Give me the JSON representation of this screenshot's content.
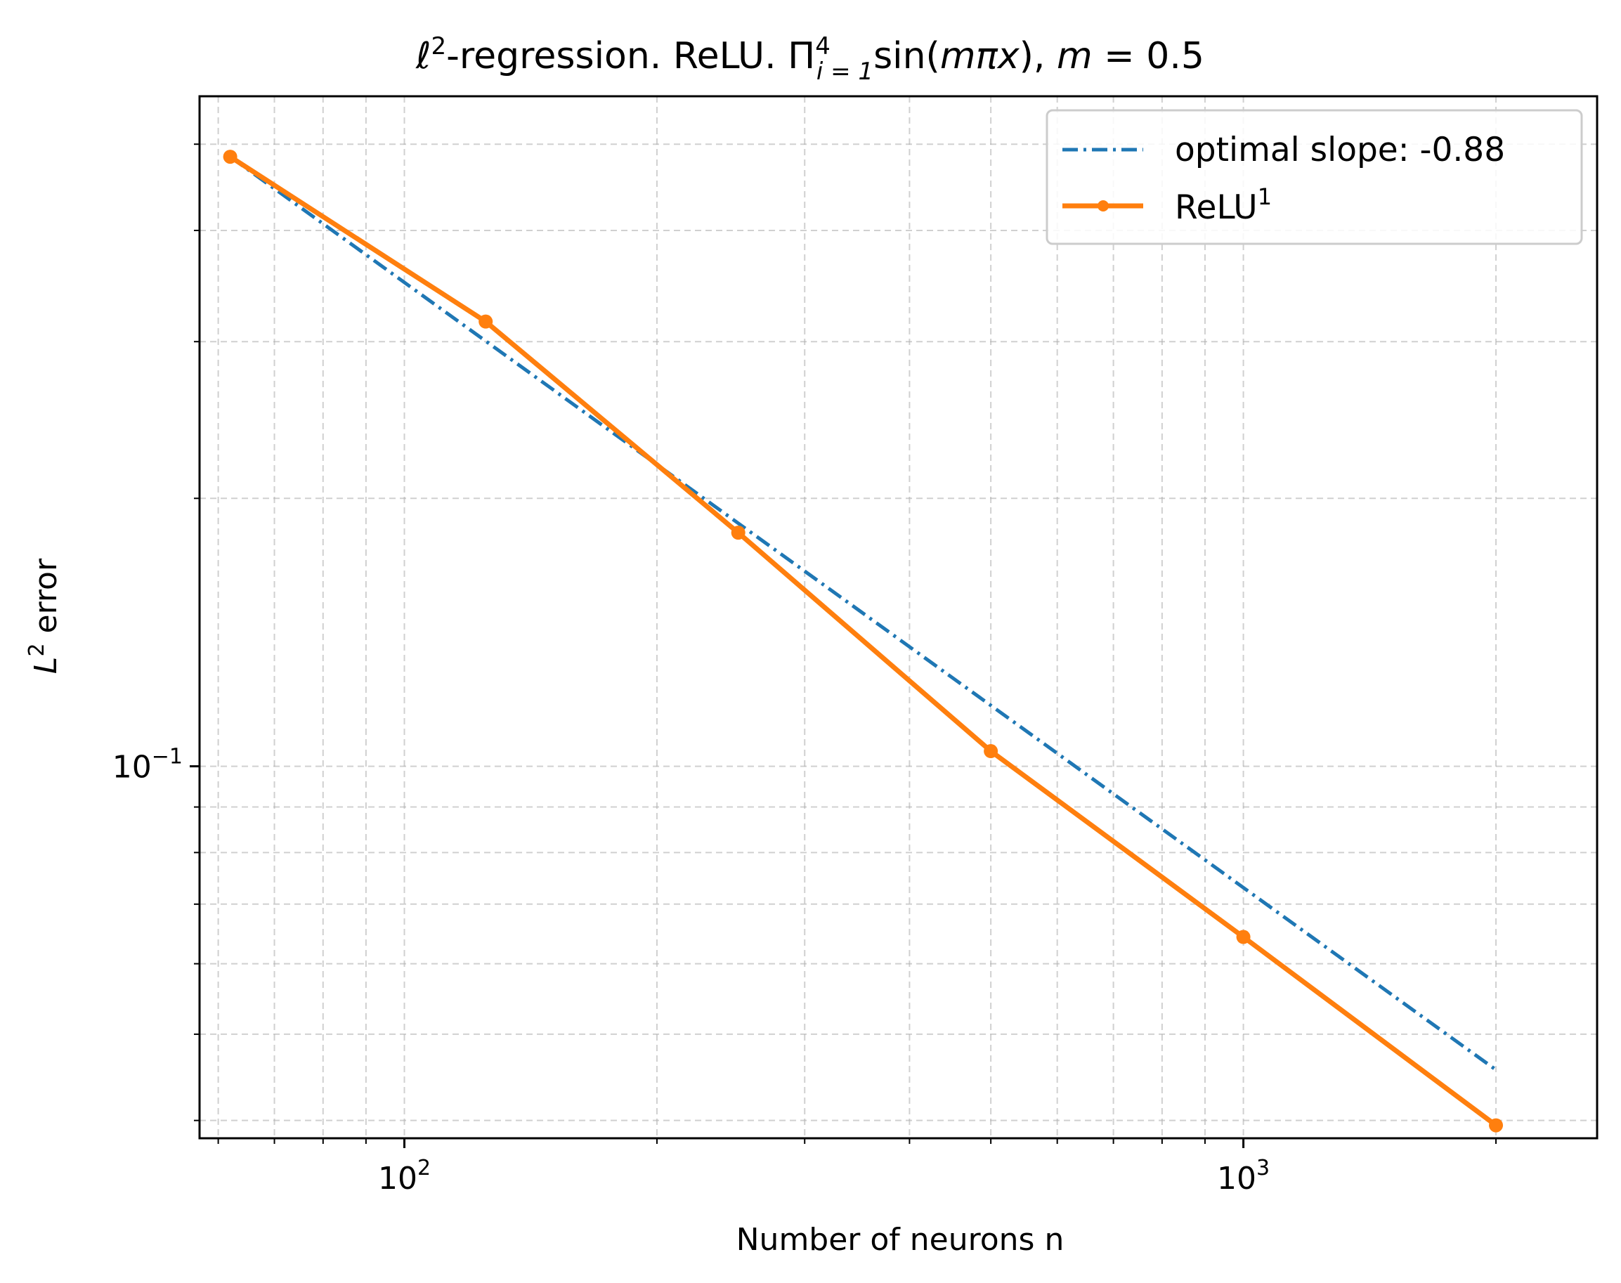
{
  "chart_data": {
    "type": "line",
    "title": "ℓ²-regression. ReLU. Π⁴ᵢ₌₁sin(mπx), m = 0.5",
    "title_parts": {
      "ell": "ℓ",
      "ell_sup": "2",
      "middle": "-regression. ReLU. Π",
      "pi_sup": "4",
      "pi_sub": "i = 1",
      "sin": "sin(",
      "m": "m",
      "pi": "π",
      "x": "x",
      "close": "), ",
      "m2": "m",
      "eq": " = 0.5"
    },
    "xlabel": "Number of neurons n",
    "ylabel": "L² error",
    "ylabel_parts": {
      "L": "L",
      "sup": "2",
      "rest": " error"
    },
    "xscale": "log",
    "yscale": "log",
    "xlim": [
      57,
      2640
    ],
    "ylim": [
      0.0382,
      0.566
    ],
    "xticks_major": [
      {
        "value": 100,
        "base": "10",
        "exp": "2"
      },
      {
        "value": 1000,
        "base": "10",
        "exp": "3"
      }
    ],
    "yticks_major": [
      {
        "value": 0.1,
        "base": "10",
        "exp": "−1"
      }
    ],
    "grid": true,
    "legend_position": "top-right",
    "series": [
      {
        "name": "optimal slope: -0.88",
        "style": "dashdot",
        "color": "#1f77b4",
        "x": [
          62,
          2000
        ],
        "y": [
          0.484,
          0.0456
        ]
      },
      {
        "name": "ReLU¹",
        "name_parts": {
          "base": "ReLU",
          "sup": "1"
        },
        "style": "solid-marker",
        "color": "#ff7f0e",
        "x": [
          62,
          125,
          250,
          500,
          1000,
          2000
        ],
        "y": [
          0.484,
          0.316,
          0.183,
          0.104,
          0.0643,
          0.0395
        ]
      }
    ]
  }
}
